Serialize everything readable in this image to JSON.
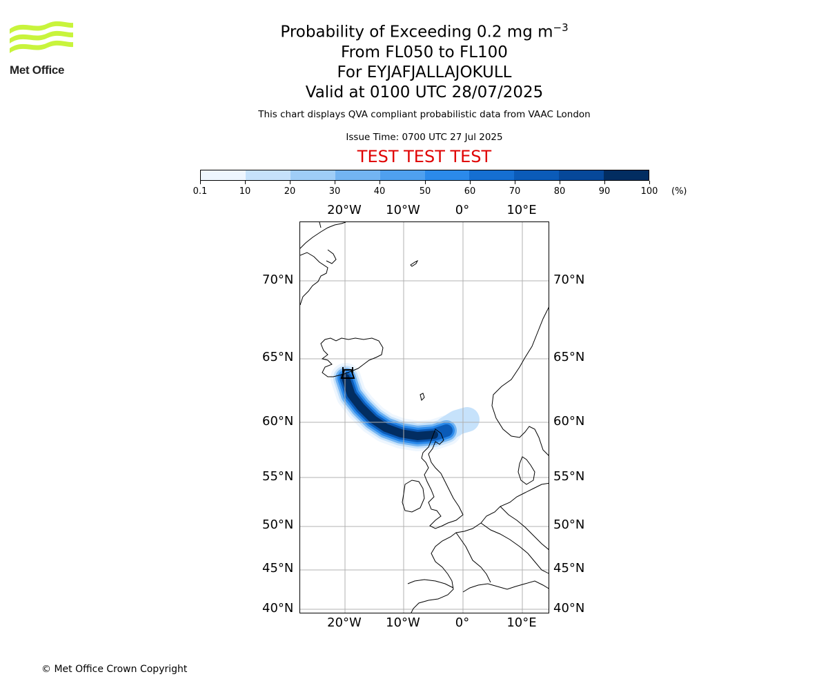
{
  "logo": {
    "text": "Met Office",
    "icon": "met-office-waves-logo",
    "color": "#c8f43c"
  },
  "header": {
    "title_line1": "Probability of Exceeding 0.2 mg m",
    "title_line1_superscript": "−3",
    "title_line2": "From FL050 to FL100",
    "title_line3": "For EYJAFJALLAJOKULL",
    "title_line4": "Valid at 0100 UTC 28/07/2025",
    "description": "This chart displays QVA compliant probabilistic data from VAAC London",
    "issue_time": "Issue Time: 0700 UTC 27 Jul 2025",
    "test_banner": "TEST TEST TEST",
    "test_color": "#e00000"
  },
  "colorbar": {
    "labels": [
      "0.1",
      "10",
      "20",
      "30",
      "40",
      "50",
      "60",
      "70",
      "80",
      "90",
      "100"
    ],
    "colors": [
      "#eef6fe",
      "#c6e2fb",
      "#9fcdf7",
      "#73b4f2",
      "#4fa0ef",
      "#2b8aeb",
      "#156fd2",
      "#0b5bb8",
      "#06489a",
      "#022d61"
    ],
    "unit": "(%)"
  },
  "map": {
    "lon_labels": [
      "20°W",
      "10°W",
      "0°",
      "10°E"
    ],
    "lat_labels": [
      "70°N",
      "65°N",
      "60°N",
      "55°N",
      "50°N",
      "45°N",
      "40°N"
    ],
    "volcano": "EYJAFJALLAJOKULL"
  },
  "footer": {
    "copyright": "© Met Office Crown Copyright"
  }
}
